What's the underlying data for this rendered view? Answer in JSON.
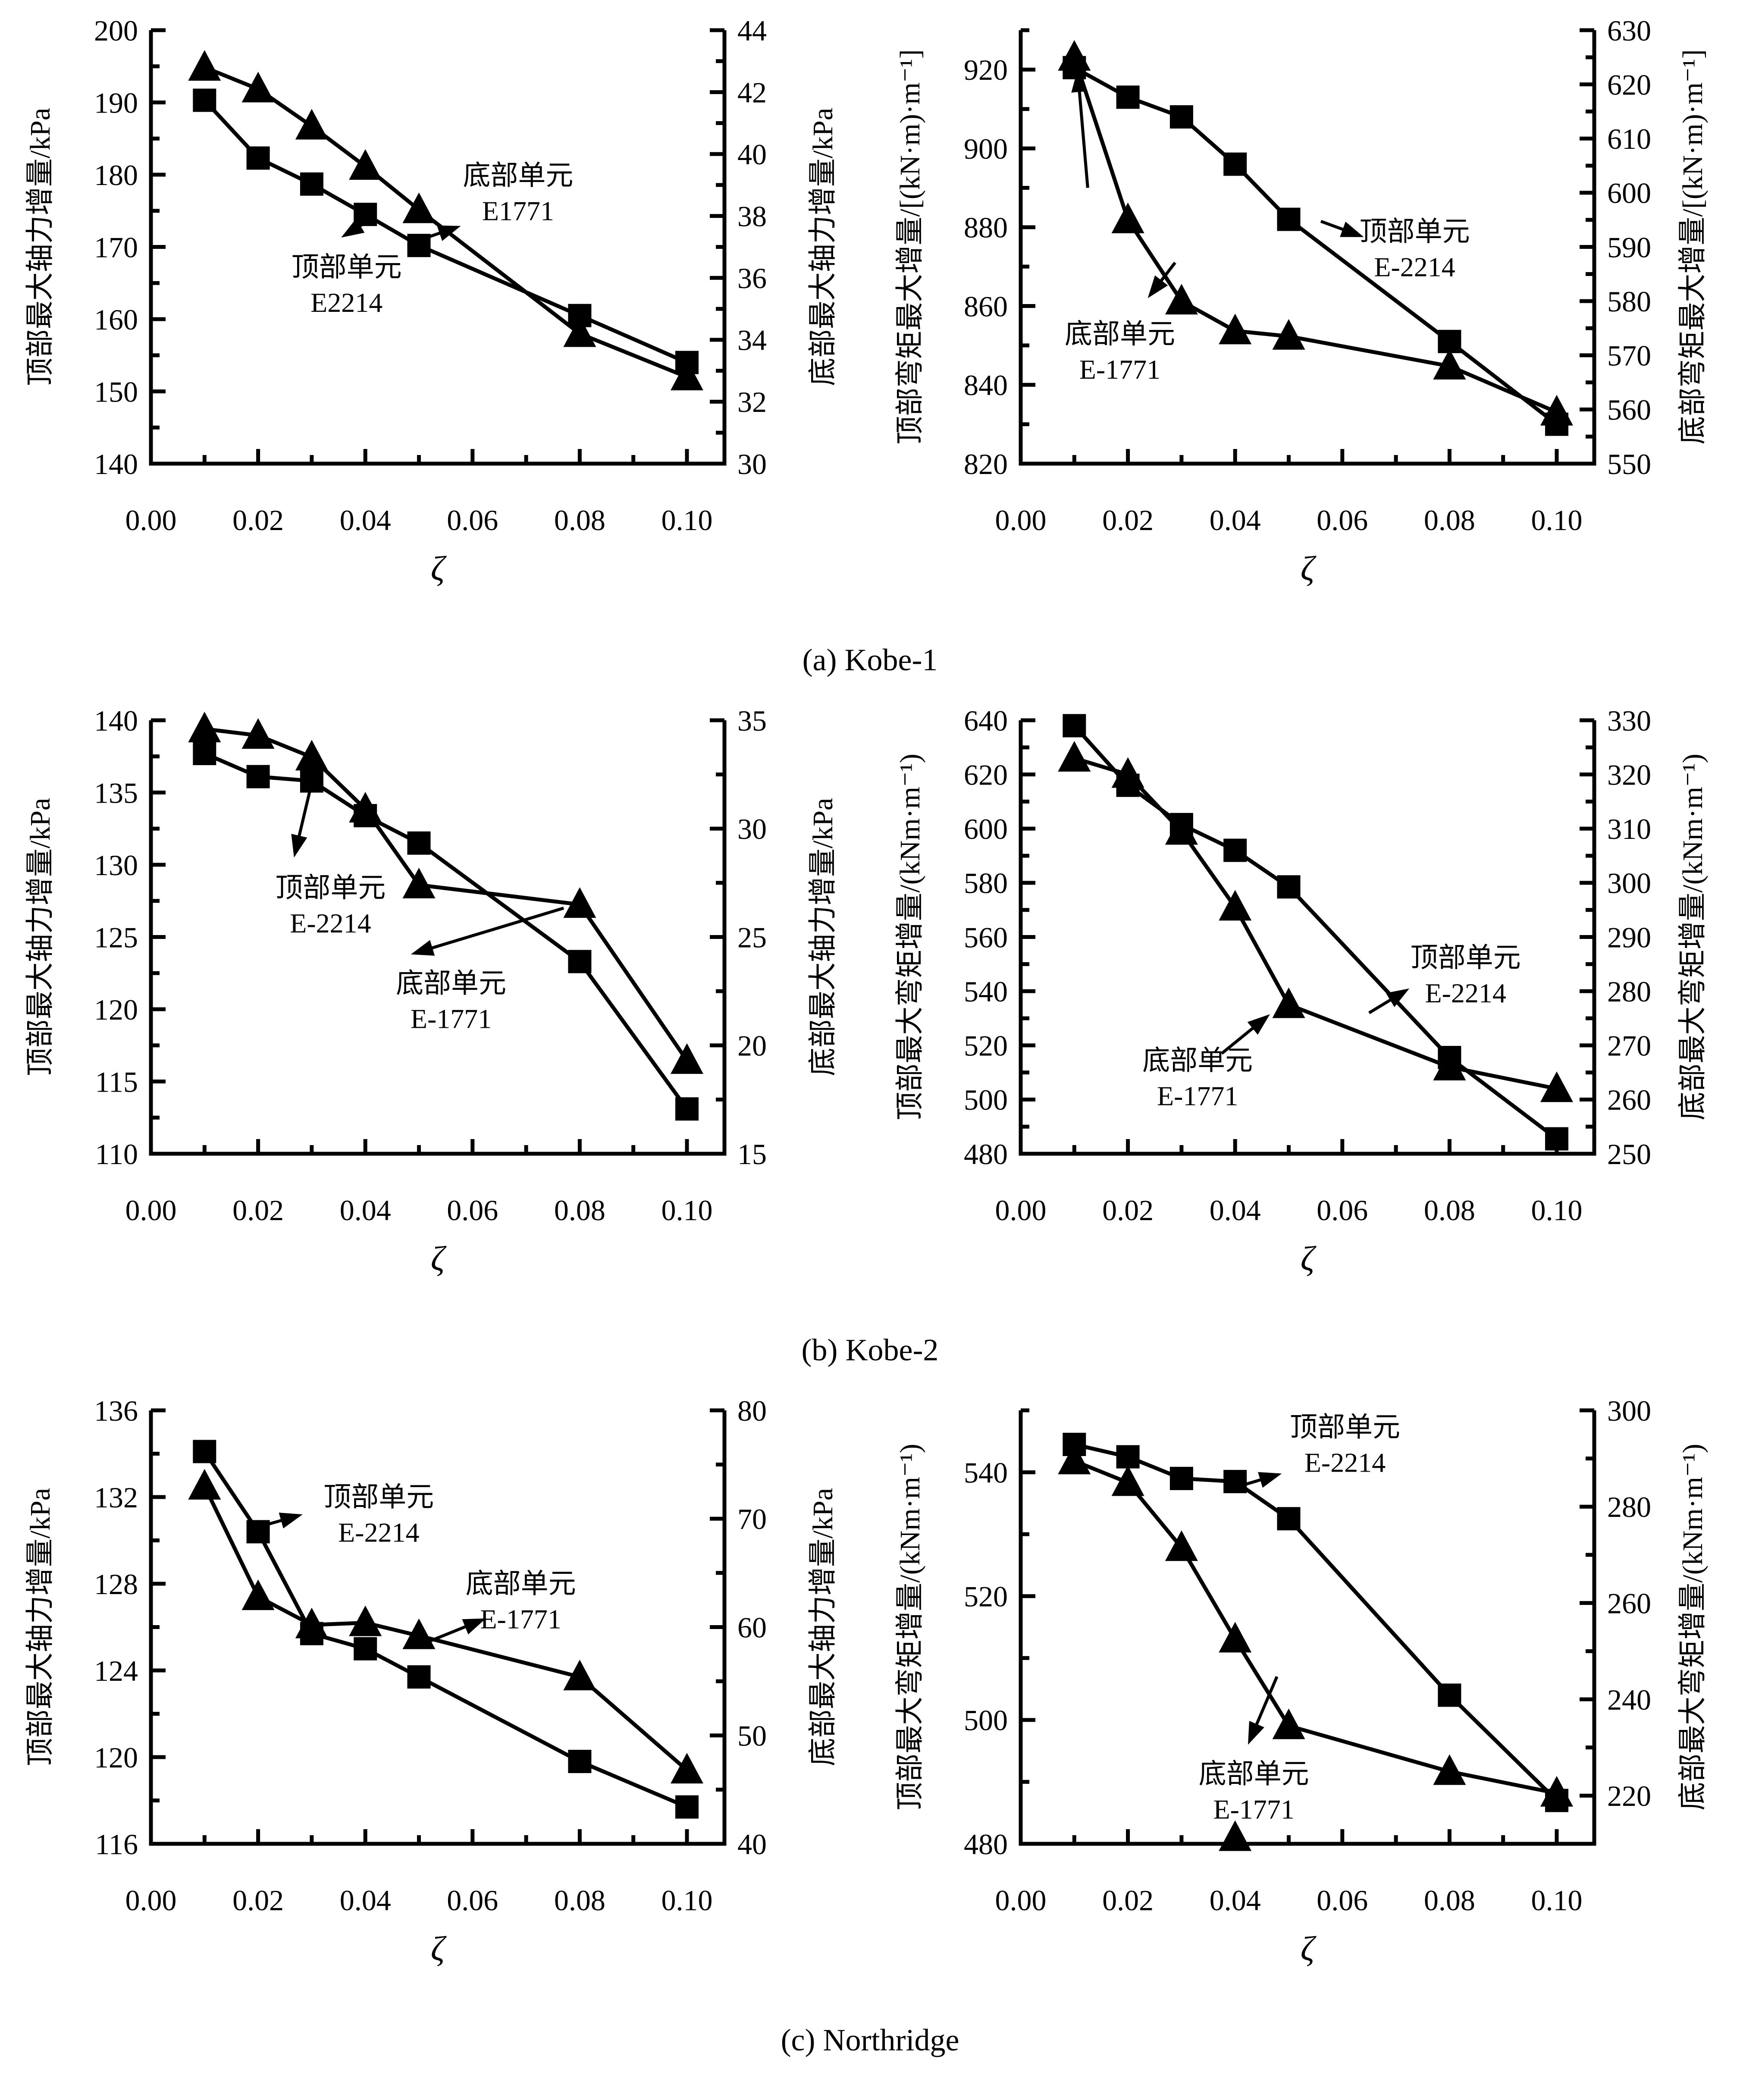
{
  "captions": [
    "(a) Kobe-1",
    "(b) Kobe-2",
    "(c) Northridge"
  ],
  "chart_data": [
    {
      "type": "line",
      "position": "row-a-left",
      "xlabel": "ζ",
      "xlim": [
        0,
        0.107
      ],
      "x_major": 0.02,
      "x_minor": 0.01,
      "x_decimals": 2,
      "x_tick_labels": [
        "0.00",
        "0.02",
        "0.04",
        "0.06",
        "0.08",
        "0.10"
      ],
      "left_axis": {
        "label": "顶部最大轴力增量/kPa",
        "min": 140,
        "max": 200,
        "major": 10,
        "minor": 5,
        "tick_labels": [
          "140",
          "150",
          "160",
          "170",
          "180",
          "190",
          "200"
        ]
      },
      "right_axis": {
        "label": "底部最大轴力增量/kPa",
        "min": 30,
        "max": 44,
        "major": 2,
        "minor": 1,
        "tick_labels": [
          "30",
          "32",
          "34",
          "36",
          "38",
          "40",
          "42",
          "44"
        ]
      },
      "x": [
        0.01,
        0.02,
        0.03,
        0.04,
        0.05,
        0.08,
        0.1
      ],
      "series": [
        {
          "name": "底部单元 E1771",
          "axis": "right",
          "marker": "triangle",
          "values": [
            42.8,
            42.1,
            40.9,
            39.6,
            38.2,
            34.2,
            32.8
          ]
        },
        {
          "name": "顶部单元 E2214",
          "axis": "left",
          "marker": "square",
          "values": [
            190.3,
            182.3,
            178.7,
            174.5,
            170.2,
            160.5,
            154.0
          ]
        }
      ],
      "annotations": [
        {
          "lines": [
            "顶部单元",
            "E2214"
          ],
          "x": 0.0365,
          "y": 164.8,
          "arrows": [
            {
              "x1": 0.0405,
              "y1": 173.6,
              "x2": 0.0355,
              "y2": 171.3
            }
          ]
        },
        {
          "lines": [
            "底部单元",
            "E1771"
          ],
          "x": 0.0685,
          "y": 177.5,
          "arrows": [
            {
              "x1": 0.0495,
              "y1": 170.8,
              "x2": 0.0578,
              "y2": 172.9
            }
          ]
        }
      ],
      "extra_markers": []
    },
    {
      "type": "line",
      "position": "row-a-right",
      "xlabel": "ζ",
      "xlim": [
        0,
        0.107
      ],
      "x_major": 0.02,
      "x_minor": 0.01,
      "x_decimals": 2,
      "x_tick_labels": [
        "0.00",
        "0.02",
        "0.04",
        "0.06",
        "0.08",
        "0.10"
      ],
      "left_axis": {
        "label": "顶部弯矩最大增量/[(kN·m)·m⁻¹]",
        "min": 820,
        "max": 930,
        "major": 20,
        "minor": 10,
        "tick_labels": [
          "820",
          "840",
          "860",
          "880",
          "900",
          "920"
        ]
      },
      "right_axis": {
        "label": "底部弯矩最大增量/[(kN·m)·m⁻¹]",
        "min": 550,
        "max": 630,
        "major": 10,
        "minor": 5,
        "tick_labels": [
          "550",
          "560",
          "570",
          "580",
          "590",
          "600",
          "610",
          "620",
          "630"
        ]
      },
      "x": [
        0.01,
        0.02,
        0.03,
        0.04,
        0.05,
        0.08,
        0.1
      ],
      "series": [
        {
          "name": "底部单元 E-1771",
          "axis": "right",
          "marker": "triangle",
          "values": [
            625,
            595,
            580,
            574.5,
            573.5,
            568,
            559.5
          ]
        },
        {
          "name": "顶部单元 E-2214",
          "axis": "left",
          "marker": "square",
          "values": [
            920.5,
            913,
            908,
            896,
            882,
            851,
            830
          ]
        }
      ],
      "annotations": [
        {
          "lines": [
            "顶部单元",
            "E-2214"
          ],
          "x": 0.0735,
          "y": 874.5,
          "arrows": [
            {
              "x1": 0.056,
              "y1": 881.5,
              "x2": 0.064,
              "y2": 877.5
            }
          ]
        },
        {
          "lines": [
            "底部单元",
            "E-1771"
          ],
          "x": 0.0185,
          "y": 848.5,
          "arrows": [
            {
              "x1": 0.0125,
              "y1": 890,
              "x2": 0.0106,
              "y2": 920
            },
            {
              "x1": 0.0288,
              "y1": 871,
              "x2": 0.0237,
              "y2": 862
            }
          ]
        }
      ],
      "extra_markers": []
    },
    {
      "type": "line",
      "position": "row-b-left",
      "xlabel": "ζ",
      "xlim": [
        0,
        0.107
      ],
      "x_major": 0.02,
      "x_minor": 0.01,
      "x_decimals": 2,
      "x_tick_labels": [
        "0.00",
        "0.02",
        "0.04",
        "0.06",
        "0.08",
        "0.10"
      ],
      "left_axis": {
        "label": "顶部最大轴力增量/kPa",
        "min": 110,
        "max": 140,
        "major": 5,
        "minor": 2.5,
        "tick_labels": [
          "110",
          "115",
          "120",
          "125",
          "130",
          "135",
          "140"
        ]
      },
      "right_axis": {
        "label": "底部最大轴力增量/kPa",
        "min": 15,
        "max": 35,
        "major": 5,
        "minor": 2.5,
        "tick_labels": [
          "15",
          "20",
          "25",
          "30",
          "35"
        ]
      },
      "x": [
        0.01,
        0.02,
        0.03,
        0.04,
        0.05,
        0.08,
        0.1
      ],
      "series": [
        {
          "name": "底部单元 E-1771",
          "axis": "right",
          "marker": "triangle",
          "values": [
            34.6,
            34.3,
            33.3,
            30.9,
            27.4,
            26.5,
            19.3
          ]
        },
        {
          "name": "顶部单元 E-2214",
          "axis": "left",
          "marker": "square",
          "values": [
            137.7,
            136.1,
            135.8,
            133.4,
            131.5,
            123.3,
            113.1
          ]
        }
      ],
      "annotations": [
        {
          "lines": [
            "顶部单元",
            "E-2214"
          ],
          "x": 0.0335,
          "y": 127.2,
          "arrows": [
            {
              "x1": 0.0297,
              "y1": 135.2,
              "x2": 0.0267,
              "y2": 130.5
            }
          ]
        },
        {
          "lines": [
            "底部单元",
            "E-1771"
          ],
          "x": 0.056,
          "y": 120.6,
          "arrows": [
            {
              "x1": 0.077,
              "y1": 127.0,
              "x2": 0.0485,
              "y2": 123.8
            }
          ]
        }
      ],
      "extra_markers": []
    },
    {
      "type": "line",
      "position": "row-b-right",
      "xlabel": "ζ",
      "xlim": [
        0,
        0.107
      ],
      "x_major": 0.02,
      "x_minor": 0.01,
      "x_decimals": 2,
      "x_tick_labels": [
        "0.00",
        "0.02",
        "0.04",
        "0.06",
        "0.08",
        "0.10"
      ],
      "left_axis": {
        "label": "顶部最大弯矩增量/(kNm·m⁻¹)",
        "min": 480,
        "max": 640,
        "major": 20,
        "minor": 10,
        "tick_labels": [
          "480",
          "500",
          "520",
          "540",
          "560",
          "580",
          "600",
          "620",
          "640"
        ]
      },
      "right_axis": {
        "label": "底部最大弯矩增量/(kNm·m⁻¹)",
        "min": 250,
        "max": 330,
        "major": 10,
        "minor": 5,
        "tick_labels": [
          "250",
          "260",
          "270",
          "280",
          "290",
          "300",
          "310",
          "320",
          "330"
        ]
      },
      "x": [
        0.01,
        0.02,
        0.03,
        0.04,
        0.05,
        0.08,
        0.1
      ],
      "series": [
        {
          "name": "底部单元 E-1771",
          "axis": "right",
          "marker": "triangle",
          "values": [
            323,
            320,
            309.5,
            295.5,
            277.5,
            266,
            262
          ]
        },
        {
          "name": "顶部单元 E-2214",
          "axis": "left",
          "marker": "square",
          "values": [
            638,
            616,
            601.5,
            592,
            578.5,
            515.5,
            485.5
          ]
        }
      ],
      "annotations": [
        {
          "lines": [
            "顶部单元",
            "E-2214"
          ],
          "x": 0.083,
          "y": 546,
          "arrows": [
            {
              "x1": 0.065,
              "y1": 532,
              "x2": 0.0725,
              "y2": 541
            }
          ]
        },
        {
          "lines": [
            "底部单元",
            "E-1771"
          ],
          "x": 0.033,
          "y": 508,
          "arrows": [
            {
              "x1": 0.0375,
              "y1": 517,
              "x2": 0.0465,
              "y2": 531.5
            }
          ]
        }
      ],
      "extra_markers": []
    },
    {
      "type": "line",
      "position": "row-c-left",
      "xlabel": "ζ",
      "xlim": [
        0,
        0.107
      ],
      "x_major": 0.02,
      "x_minor": 0.01,
      "x_decimals": 2,
      "x_tick_labels": [
        "0.00",
        "0.02",
        "0.04",
        "0.06",
        "0.08",
        "0.10"
      ],
      "left_axis": {
        "label": "顶部最大轴力增量/kPa",
        "min": 116,
        "max": 136,
        "major": 4,
        "minor": 2,
        "tick_labels": [
          "116",
          "120",
          "124",
          "128",
          "132",
          "136"
        ]
      },
      "right_axis": {
        "label": "底部最大轴力增量/kPa",
        "min": 40,
        "max": 80,
        "major": 10,
        "minor": 5,
        "tick_labels": [
          "40",
          "50",
          "60",
          "70",
          "80"
        ]
      },
      "x": [
        0.01,
        0.02,
        0.03,
        0.04,
        0.05,
        0.08,
        0.1
      ],
      "series": [
        {
          "name": "底部单元 E-1771",
          "axis": "right",
          "marker": "triangle",
          "values": [
            73,
            62.8,
            60.2,
            60.4,
            59.2,
            55.4,
            46.8
          ]
        },
        {
          "name": "顶部单元 E-2214",
          "axis": "left",
          "marker": "square",
          "values": [
            134.1,
            130.4,
            125.7,
            125.0,
            123.7,
            119.8,
            117.7
          ]
        }
      ],
      "annotations": [
        {
          "lines": [
            "顶部单元",
            "E-2214"
          ],
          "x": 0.0425,
          "y": 131.2,
          "arrows": [
            {
              "x1": 0.0212,
              "y1": 130.7,
              "x2": 0.0283,
              "y2": 131.2
            }
          ]
        },
        {
          "lines": [
            "底部单元",
            "E-1771"
          ],
          "x": 0.069,
          "y": 127.2,
          "arrows": [
            {
              "x1": 0.0505,
              "y1": 125.2,
              "x2": 0.0625,
              "y2": 126.4
            }
          ]
        }
      ],
      "extra_markers": []
    },
    {
      "type": "line",
      "position": "row-c-right",
      "xlabel": "ζ",
      "xlim": [
        0,
        0.107
      ],
      "x_major": 0.02,
      "x_minor": 0.01,
      "x_decimals": 2,
      "x_tick_labels": [
        "0.00",
        "0.02",
        "0.04",
        "0.06",
        "0.08",
        "0.10"
      ],
      "left_axis": {
        "label": "顶部最大弯矩增量/(kNm·m⁻¹)",
        "min": 480,
        "max": 550,
        "major": 20,
        "minor": 10,
        "tick_labels": [
          "480",
          "500",
          "520",
          "540"
        ]
      },
      "right_axis": {
        "label": "底部最大弯矩增量/(kNm·m⁻¹)",
        "min": 210,
        "max": 300,
        "major": 20,
        "minor": 10,
        "tick_labels": [
          "220",
          "240",
          "260",
          "280",
          "300"
        ]
      },
      "x": [
        0.01,
        0.02,
        0.03,
        0.04,
        0.05,
        0.08,
        0.1
      ],
      "series": [
        {
          "name": "底部单元 E-1771",
          "axis": "right",
          "marker": "triangle",
          "values": [
            289.5,
            285,
            271.5,
            252.5,
            234.5,
            225,
            220.5
          ]
        },
        {
          "name": "顶部单元 E-2214",
          "axis": "left",
          "marker": "square",
          "values": [
            544.5,
            542.5,
            539,
            538.5,
            532.5,
            504,
            487
          ]
        }
      ],
      "annotations": [
        {
          "lines": [
            "顶部单元",
            "E-2214"
          ],
          "x": 0.0605,
          "y": 544.5,
          "arrows": [
            {
              "x1": 0.039,
              "y1": 537.3,
              "x2": 0.0487,
              "y2": 539.8
            }
          ]
        },
        {
          "lines": [
            "底部单元",
            "E-1771"
          ],
          "x": 0.0435,
          "y": 488.5,
          "arrows": [
            {
              "x1": 0.0478,
              "y1": 507,
              "x2": 0.0424,
              "y2": 496
            }
          ]
        }
      ],
      "extra_markers": [
        {
          "marker": "triangle",
          "x": 0.04,
          "y": 481
        }
      ]
    }
  ],
  "style": {
    "ink_color": "#000000",
    "background": "#ffffff"
  }
}
